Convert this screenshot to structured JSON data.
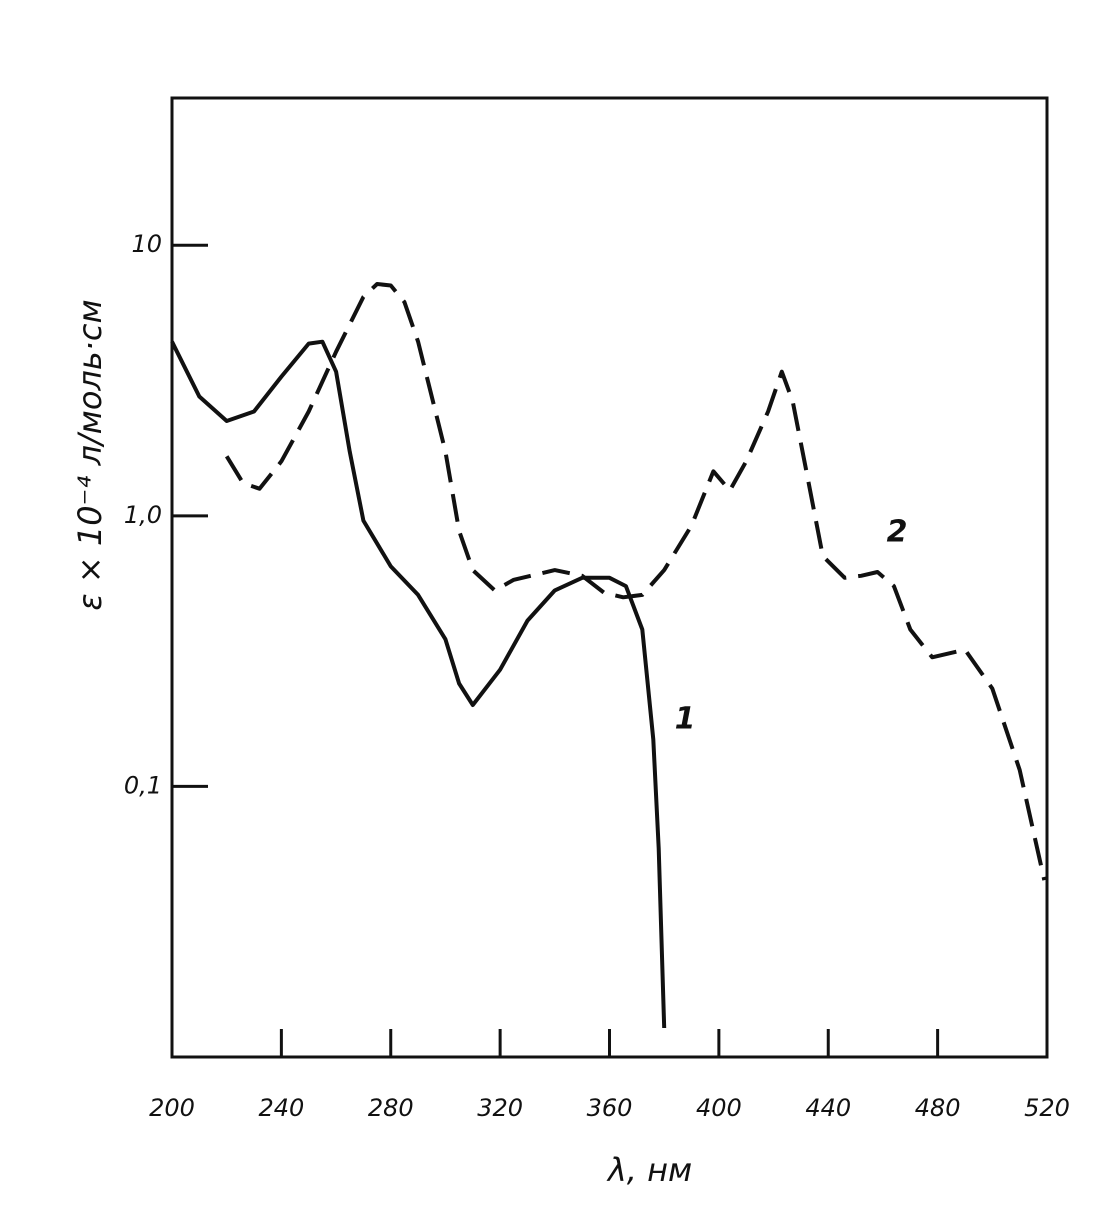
{
  "chart_data": {
    "type": "line",
    "xlabel": "λ, нм",
    "ylabel": "ε × 10⁻⁴ л/моль·см",
    "xlim": [
      200,
      520
    ],
    "xticks": [
      200,
      240,
      280,
      320,
      360,
      400,
      440,
      480,
      520
    ],
    "ylim": [
      0.01,
      35
    ],
    "yscale": "log",
    "yticks": [
      {
        "value": 0.1,
        "label": "0,1"
      },
      {
        "value": 1,
        "label": "1,0"
      },
      10
    ],
    "series": [
      {
        "name": "1",
        "color": "#111111",
        "dash": "solid",
        "x": [
          200,
          210,
          220,
          230,
          240,
          250,
          255,
          260,
          265,
          270,
          280,
          290,
          300,
          305,
          310,
          320,
          330,
          340,
          350,
          360,
          366,
          372,
          376,
          378,
          380
        ],
        "values": [
          4.4,
          2.76,
          2.24,
          2.43,
          3.27,
          4.33,
          4.4,
          3.41,
          1.73,
          0.96,
          0.65,
          0.51,
          0.35,
          0.24,
          0.2,
          0.27,
          0.41,
          0.53,
          0.59,
          0.59,
          0.55,
          0.38,
          0.149,
          0.059,
          0.0128
        ]
      },
      {
        "name": "2",
        "color": "#111111",
        "dash": "dashed",
        "x": [
          220,
          226,
          232,
          240,
          250,
          260,
          270,
          275,
          280,
          285,
          290,
          300,
          305,
          310,
          318,
          325,
          340,
          350,
          358,
          365,
          372,
          380,
          390,
          398,
          404,
          410,
          418,
          423,
          427,
          432,
          438,
          446,
          452,
          458,
          464,
          470,
          478,
          490,
          500,
          510,
          519
        ],
        "values": [
          1.66,
          1.32,
          1.26,
          1.59,
          2.43,
          4.04,
          6.44,
          7.19,
          7.1,
          6.17,
          4.4,
          1.73,
          0.88,
          0.63,
          0.53,
          0.58,
          0.63,
          0.6,
          0.52,
          0.5,
          0.51,
          0.63,
          0.92,
          1.46,
          1.24,
          1.59,
          2.43,
          3.41,
          2.65,
          1.46,
          0.71,
          0.59,
          0.6,
          0.62,
          0.55,
          0.38,
          0.3,
          0.32,
          0.23,
          0.115,
          0.045
        ]
      }
    ]
  }
}
